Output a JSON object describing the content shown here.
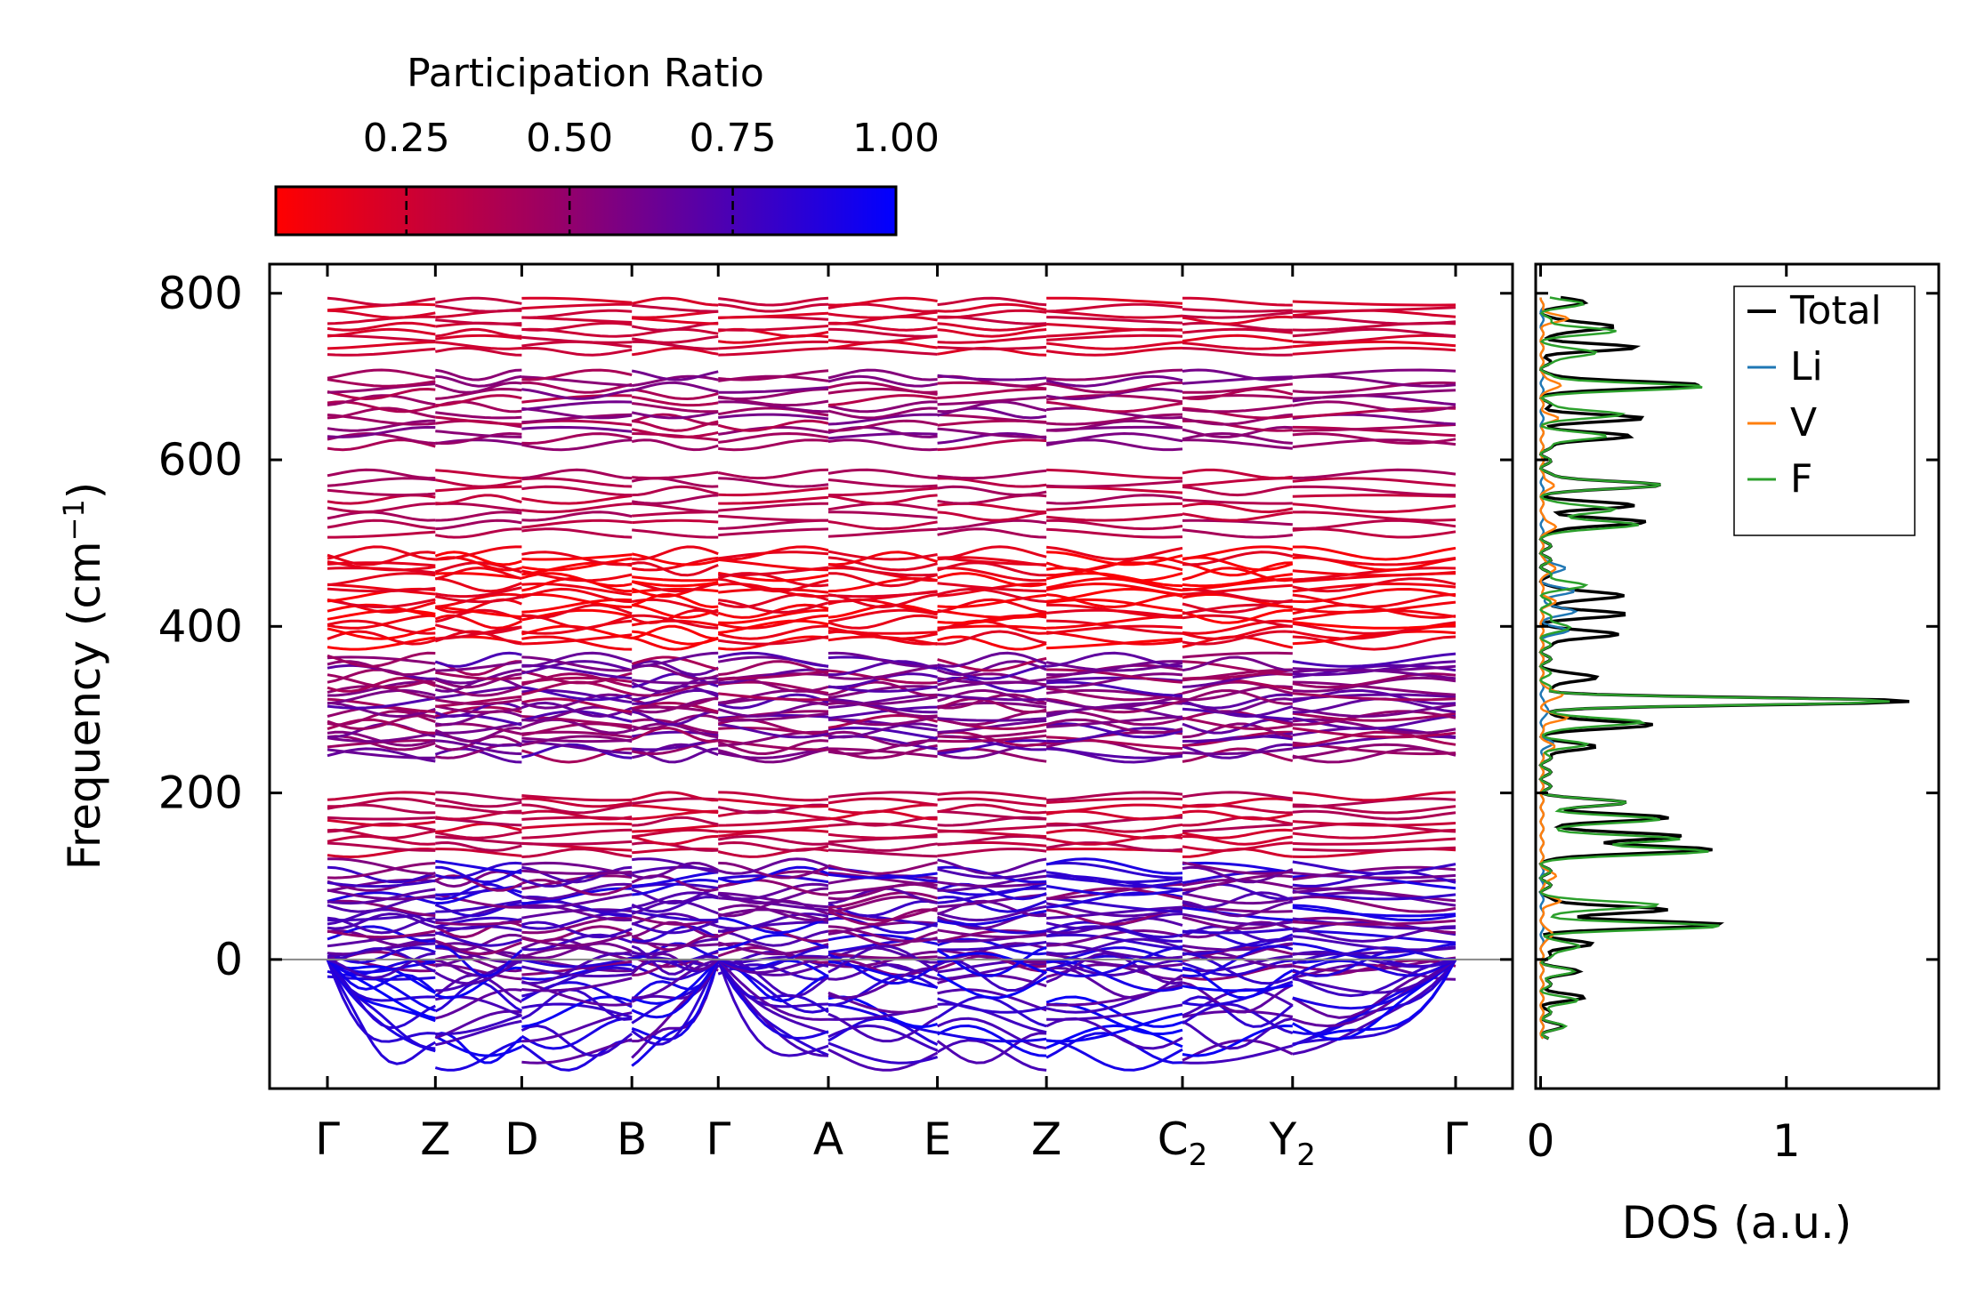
{
  "chart_data": [
    {
      "type": "line",
      "name": "phonon-band-structure",
      "title": "",
      "xlabel": "",
      "ylabel_main": "Frequency (cm",
      "ylabel_sup": "−1",
      "ylabel_close": ")",
      "ylim": [
        -155,
        835
      ],
      "yticks": [
        0,
        200,
        400,
        600,
        800
      ],
      "ytick_labels": [
        "0",
        "200",
        "400",
        "600",
        "800"
      ],
      "kpath_positions": [
        0,
        1,
        1.8,
        2.82,
        3.62,
        4.64,
        5.65,
        6.66,
        7.92,
        8.94,
        10.45
      ],
      "kpath_labels": [
        {
          "main": "Γ",
          "sub": ""
        },
        {
          "main": "Z",
          "sub": ""
        },
        {
          "main": "D",
          "sub": ""
        },
        {
          "main": "B",
          "sub": ""
        },
        {
          "main": "Γ",
          "sub": ""
        },
        {
          "main": "A",
          "sub": ""
        },
        {
          "main": "E",
          "sub": ""
        },
        {
          "main": "Z",
          "sub": ""
        },
        {
          "main": "C",
          "sub": "2"
        },
        {
          "main": "Y",
          "sub": "2"
        },
        {
          "main": "Γ",
          "sub": ""
        }
      ],
      "zero_line": 0,
      "band_groups": [
        {
          "name": "group-1",
          "range": [
            730,
            790
          ],
          "count": 9,
          "pr": [
            0.18,
            0.32
          ]
        },
        {
          "name": "group-2",
          "range": [
            618,
            702
          ],
          "count": 12,
          "pr": [
            0.35,
            0.62
          ]
        },
        {
          "name": "group-3",
          "range": [
            512,
            583
          ],
          "count": 8,
          "pr": [
            0.28,
            0.45
          ]
        },
        {
          "name": "group-4",
          "range": [
            380,
            488
          ],
          "count": 18,
          "pr": [
            0.06,
            0.2
          ]
        },
        {
          "name": "group-5",
          "range": [
            245,
            360
          ],
          "count": 24,
          "pr": [
            0.4,
            0.75
          ]
        },
        {
          "name": "group-6",
          "range": [
            128,
            196
          ],
          "count": 10,
          "pr": [
            0.22,
            0.4
          ]
        },
        {
          "name": "group-7",
          "range": [
            -15,
            112
          ],
          "count": 26,
          "pr": [
            0.5,
            0.92
          ]
        },
        {
          "name": "group-8",
          "range": [
            -115,
            -2
          ],
          "count": 14,
          "pr": [
            0.65,
            0.98
          ]
        }
      ]
    },
    {
      "type": "colorbar",
      "name": "participation-ratio-colorbar",
      "title": "Participation Ratio",
      "range": [
        0.05,
        1.0
      ],
      "ticks": [
        0.25,
        0.5,
        0.75,
        1.0
      ],
      "tick_labels": [
        "0.25",
        "0.50",
        "0.75",
        "1.00"
      ],
      "color_low": "#ff0000",
      "color_high": "#0000ff",
      "color_mid": "#990066"
    },
    {
      "type": "line",
      "name": "dos-panel",
      "xlabel": "DOS (a.u.)",
      "xlim": [
        -0.02,
        1.62
      ],
      "xticks": [
        0,
        1
      ],
      "xtick_labels": [
        "0",
        "1"
      ],
      "ylim": [
        -155,
        835
      ],
      "legend_position": "top-right",
      "series": [
        {
          "name": "Total",
          "color": "#000000",
          "peaks": [
            [
              790,
              0.16
            ],
            [
              760,
              0.3
            ],
            [
              735,
              0.35
            ],
            [
              690,
              0.65
            ],
            [
              650,
              0.38
            ],
            [
              628,
              0.35
            ],
            [
              570,
              0.48
            ],
            [
              545,
              0.35
            ],
            [
              525,
              0.42
            ],
            [
              437,
              0.34
            ],
            [
              415,
              0.32
            ],
            [
              390,
              0.3
            ],
            [
              338,
              0.22
            ],
            [
              310,
              1.5
            ],
            [
              282,
              0.45
            ],
            [
              255,
              0.2
            ],
            [
              188,
              0.32
            ],
            [
              170,
              0.5
            ],
            [
              148,
              0.58
            ],
            [
              132,
              0.7
            ],
            [
              60,
              0.5
            ],
            [
              42,
              0.72
            ],
            [
              18,
              0.18
            ],
            [
              -15,
              0.12
            ],
            [
              -45,
              0.14
            ],
            [
              -80,
              0.05
            ]
          ]
        },
        {
          "name": "Li",
          "color": "#1f77b4",
          "peaks": [
            [
              470,
              0.1
            ],
            [
              442,
              0.13
            ],
            [
              418,
              0.14
            ],
            [
              395,
              0.1
            ],
            [
              300,
              0.03
            ],
            [
              260,
              0.04
            ]
          ]
        },
        {
          "name": "V",
          "color": "#ff7f0e",
          "peaks": [
            [
              770,
              0.1
            ],
            [
              690,
              0.08
            ],
            [
              650,
              0.06
            ],
            [
              570,
              0.05
            ],
            [
              520,
              0.06
            ],
            [
              470,
              0.06
            ],
            [
              430,
              0.05
            ],
            [
              318,
              0.09
            ],
            [
              290,
              0.1
            ],
            [
              255,
              0.05
            ],
            [
              100,
              0.06
            ],
            [
              70,
              0.07
            ],
            [
              30,
              0.05
            ]
          ]
        },
        {
          "name": "F",
          "color": "#2ca02c",
          "peaks": [
            [
              788,
              0.14
            ],
            [
              755,
              0.28
            ],
            [
              728,
              0.22
            ],
            [
              688,
              0.65
            ],
            [
              655,
              0.32
            ],
            [
              628,
              0.25
            ],
            [
              570,
              0.48
            ],
            [
              540,
              0.3
            ],
            [
              522,
              0.4
            ],
            [
              450,
              0.16
            ],
            [
              400,
              0.1
            ],
            [
              310,
              1.42
            ],
            [
              285,
              0.42
            ],
            [
              258,
              0.15
            ],
            [
              188,
              0.32
            ],
            [
              168,
              0.48
            ],
            [
              145,
              0.55
            ],
            [
              130,
              0.68
            ],
            [
              65,
              0.48
            ],
            [
              40,
              0.7
            ],
            [
              15,
              0.15
            ],
            [
              -15,
              0.1
            ],
            [
              -50,
              0.12
            ],
            [
              -80,
              0.06
            ]
          ]
        }
      ]
    }
  ]
}
